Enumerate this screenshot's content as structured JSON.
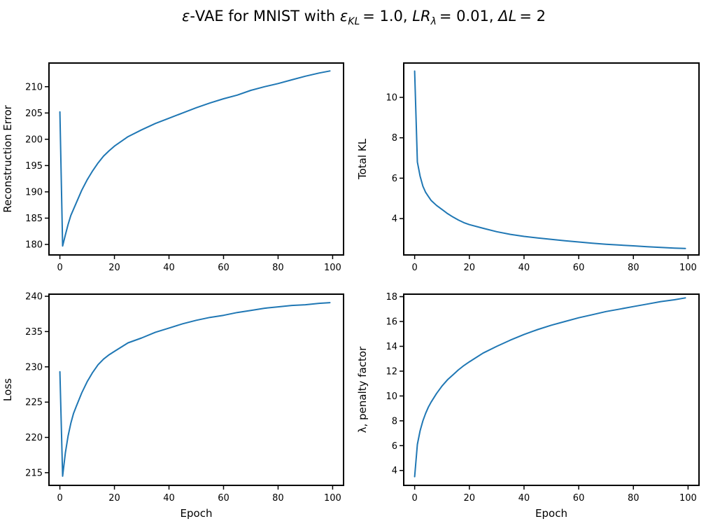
{
  "figure": {
    "title": {
      "prefix": "-VAE for MNIST with ",
      "eps_symbol": "ε",
      "eps_sub": "KL",
      "eps_value": "= 1.0",
      "lr_symbol": "LR",
      "lr_sub": "λ",
      "lr_value": "= 0.01",
      "dl_symbol": "ΔL",
      "dl_value": "= 2"
    }
  },
  "chart_data": [
    {
      "type": "line",
      "id": "recon",
      "xlabel": "",
      "ylabel": "Reconstruction Error",
      "xlim": [
        -4,
        104
      ],
      "ylim": [
        178,
        214.5
      ],
      "xticks": [
        0,
        20,
        40,
        60,
        80,
        100
      ],
      "yticks": [
        180,
        185,
        190,
        195,
        200,
        205,
        210
      ],
      "color": "#1f77b4",
      "x": [
        0,
        1,
        2,
        3,
        4,
        5,
        6,
        8,
        10,
        12,
        14,
        16,
        18,
        20,
        25,
        30,
        35,
        40,
        45,
        50,
        55,
        60,
        65,
        70,
        75,
        80,
        85,
        90,
        95,
        99
      ],
      "values": [
        205.2,
        179.7,
        181.8,
        183.8,
        185.5,
        186.7,
        187.9,
        190.3,
        192.3,
        194.0,
        195.5,
        196.8,
        197.8,
        198.7,
        200.5,
        201.8,
        203.0,
        204.0,
        205.0,
        206.0,
        206.9,
        207.7,
        208.4,
        209.3,
        210.0,
        210.6,
        211.3,
        212.0,
        212.6,
        213.0
      ]
    },
    {
      "type": "line",
      "id": "kl",
      "xlabel": "",
      "ylabel": "Total KL",
      "xlim": [
        -4,
        104
      ],
      "ylim": [
        2.2,
        11.7
      ],
      "xticks": [
        0,
        20,
        40,
        60,
        80,
        100
      ],
      "yticks": [
        4,
        6,
        8,
        10
      ],
      "color": "#1f77b4",
      "x": [
        0,
        1,
        2,
        3,
        4,
        5,
        6,
        8,
        10,
        12,
        14,
        16,
        18,
        20,
        25,
        30,
        35,
        40,
        45,
        50,
        55,
        60,
        65,
        70,
        75,
        80,
        85,
        90,
        95,
        99
      ],
      "values": [
        11.3,
        6.8,
        6.1,
        5.6,
        5.3,
        5.1,
        4.9,
        4.65,
        4.45,
        4.25,
        4.08,
        3.93,
        3.8,
        3.7,
        3.52,
        3.35,
        3.22,
        3.12,
        3.04,
        2.97,
        2.9,
        2.84,
        2.78,
        2.73,
        2.69,
        2.65,
        2.61,
        2.57,
        2.54,
        2.52
      ]
    },
    {
      "type": "line",
      "id": "loss",
      "xlabel": "Epoch",
      "ylabel": "Loss",
      "xlim": [
        -4,
        104
      ],
      "ylim": [
        213.2,
        240.3
      ],
      "xticks": [
        0,
        20,
        40,
        60,
        80,
        100
      ],
      "yticks": [
        215,
        220,
        225,
        230,
        235,
        240
      ],
      "color": "#1f77b4",
      "x": [
        0,
        1,
        2,
        3,
        4,
        5,
        6,
        8,
        10,
        12,
        14,
        16,
        18,
        20,
        25,
        30,
        35,
        40,
        45,
        50,
        55,
        60,
        65,
        70,
        75,
        80,
        85,
        90,
        95,
        99
      ],
      "values": [
        229.3,
        214.5,
        217.8,
        220.2,
        222.0,
        223.4,
        224.4,
        226.3,
        227.9,
        229.2,
        230.3,
        231.1,
        231.7,
        232.2,
        233.4,
        234.1,
        234.9,
        235.5,
        236.1,
        236.6,
        237.0,
        237.3,
        237.7,
        238.0,
        238.3,
        238.5,
        238.7,
        238.8,
        239.0,
        239.1
      ]
    },
    {
      "type": "line",
      "id": "lambda",
      "xlabel": "Epoch",
      "ylabel": "λ, penalty factor",
      "xlim": [
        -4,
        104
      ],
      "ylim": [
        2.8,
        18.2
      ],
      "xticks": [
        0,
        20,
        40,
        60,
        80,
        100
      ],
      "yticks": [
        4,
        6,
        8,
        10,
        12,
        14,
        16,
        18
      ],
      "color": "#1f77b4",
      "x": [
        0,
        1,
        2,
        3,
        4,
        5,
        6,
        8,
        10,
        12,
        14,
        16,
        18,
        20,
        25,
        30,
        35,
        40,
        45,
        50,
        55,
        60,
        65,
        70,
        75,
        80,
        85,
        90,
        95,
        99
      ],
      "values": [
        3.5,
        6.1,
        7.2,
        8.0,
        8.6,
        9.1,
        9.5,
        10.2,
        10.8,
        11.3,
        11.7,
        12.1,
        12.45,
        12.75,
        13.45,
        14.0,
        14.5,
        14.95,
        15.35,
        15.7,
        16.0,
        16.3,
        16.55,
        16.8,
        17.0,
        17.2,
        17.4,
        17.6,
        17.75,
        17.9
      ]
    }
  ]
}
